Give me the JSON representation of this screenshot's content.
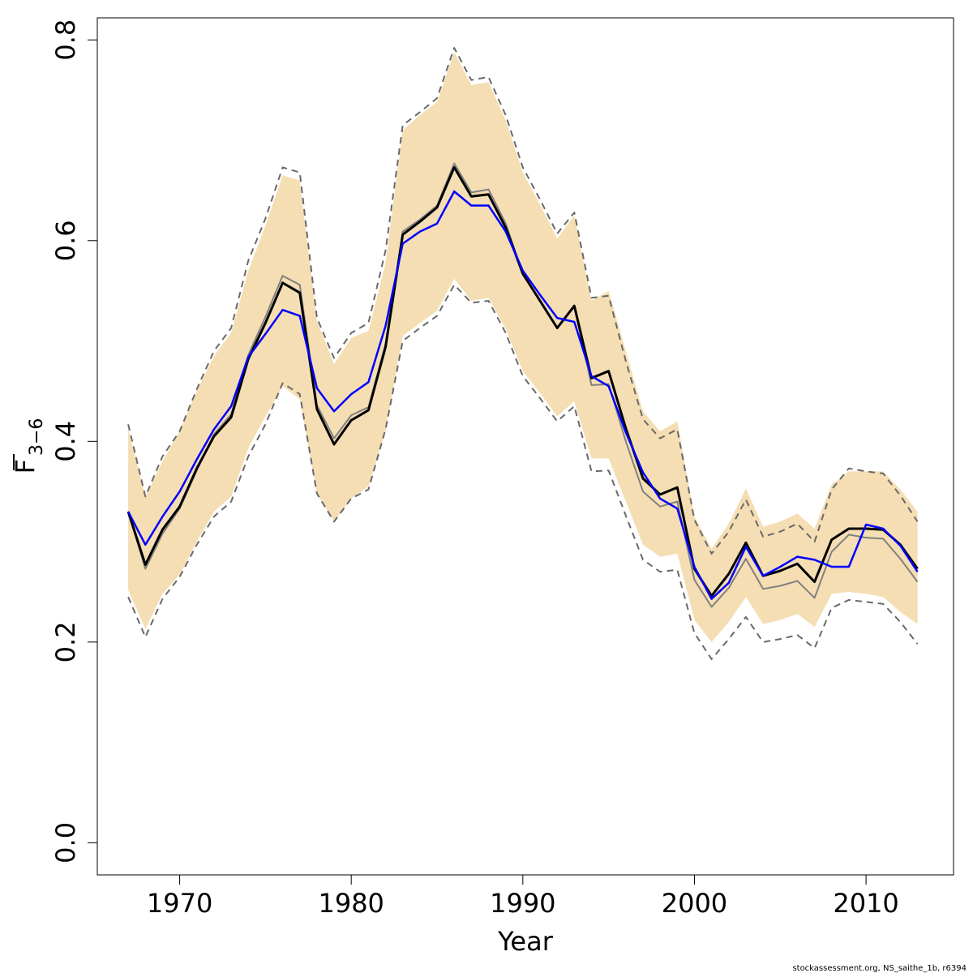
{
  "chart_data": {
    "type": "line",
    "xlabel": "Year",
    "ylabel_main": "F",
    "ylabel_sub": "3−6",
    "xlim": [
      1965.2,
      2015.1
    ],
    "ylim": [
      -0.032,
      0.822
    ],
    "x_ticks": [
      1970,
      1980,
      1990,
      2000,
      2010
    ],
    "x_tick_labels": [
      "1970",
      "1980",
      "1990",
      "2000",
      "2010"
    ],
    "y_ticks": [
      0.0,
      0.2,
      0.4,
      0.6,
      0.8
    ],
    "y_tick_labels": [
      "0.0",
      "0.2",
      "0.4",
      "0.6",
      "0.8"
    ],
    "grid": false,
    "colors": {
      "band": "#f5deb3",
      "main_line": "#000000",
      "blue_line": "#0000ff",
      "grey_line": "#808080",
      "dashed_bounds": "#696969"
    },
    "years": [
      1967,
      1968,
      1969,
      1970,
      1971,
      1972,
      1973,
      1974,
      1975,
      1976,
      1977,
      1978,
      1979,
      1980,
      1981,
      1982,
      1983,
      1984,
      1985,
      1986,
      1987,
      1988,
      1989,
      1990,
      1991,
      1992,
      1993,
      1994,
      1995,
      1996,
      1997,
      1998,
      1999,
      2000,
      2001,
      2002,
      2003,
      2004,
      2005,
      2006,
      2007,
      2008,
      2009,
      2010,
      2011,
      2012,
      2013
    ],
    "band_upper": [
      0.412,
      0.345,
      0.38,
      0.41,
      0.45,
      0.485,
      0.508,
      0.57,
      0.615,
      0.665,
      0.66,
      0.52,
      0.477,
      0.503,
      0.51,
      0.578,
      0.71,
      0.725,
      0.738,
      0.788,
      0.755,
      0.758,
      0.72,
      0.668,
      0.636,
      0.602,
      0.625,
      0.54,
      0.55,
      0.49,
      0.43,
      0.41,
      0.42,
      0.325,
      0.293,
      0.318,
      0.353,
      0.315,
      0.32,
      0.328,
      0.313,
      0.357,
      0.37,
      0.37,
      0.37,
      0.352,
      0.33
    ],
    "band_lower": [
      0.252,
      0.213,
      0.248,
      0.267,
      0.3,
      0.33,
      0.345,
      0.393,
      0.425,
      0.455,
      0.442,
      0.348,
      0.32,
      0.343,
      0.355,
      0.41,
      0.505,
      0.518,
      0.53,
      0.562,
      0.54,
      0.543,
      0.512,
      0.47,
      0.448,
      0.425,
      0.44,
      0.383,
      0.383,
      0.34,
      0.297,
      0.285,
      0.288,
      0.222,
      0.2,
      0.22,
      0.245,
      0.218,
      0.222,
      0.228,
      0.215,
      0.248,
      0.25,
      0.248,
      0.245,
      0.23,
      0.218
    ],
    "series": [
      {
        "name": "",
        "style": "solid",
        "color": "#000000",
        "width": 3,
        "values": [
          0.33,
          0.277,
          0.312,
          0.335,
          0.373,
          0.405,
          0.424,
          0.482,
          0.518,
          0.558,
          0.548,
          0.432,
          0.397,
          0.421,
          0.431,
          0.494,
          0.606,
          0.619,
          0.633,
          0.673,
          0.644,
          0.646,
          0.613,
          0.567,
          0.54,
          0.513,
          0.535,
          0.463,
          0.47,
          0.413,
          0.363,
          0.347,
          0.354,
          0.273,
          0.246,
          0.268,
          0.299,
          0.266,
          0.271,
          0.278,
          0.26,
          0.302,
          0.313,
          0.313,
          0.312,
          0.297,
          0.273
        ]
      },
      {
        "name": "",
        "style": "solid",
        "color": "#808080",
        "width": 2,
        "values": [
          0.33,
          0.273,
          0.308,
          0.333,
          0.371,
          0.407,
          0.427,
          0.486,
          0.524,
          0.565,
          0.556,
          0.436,
          0.403,
          0.426,
          0.434,
          0.497,
          0.609,
          0.621,
          0.635,
          0.677,
          0.648,
          0.651,
          0.617,
          0.567,
          0.54,
          0.513,
          0.534,
          0.456,
          0.457,
          0.4,
          0.35,
          0.335,
          0.34,
          0.262,
          0.235,
          0.254,
          0.283,
          0.253,
          0.256,
          0.261,
          0.244,
          0.29,
          0.307,
          0.304,
          0.303,
          0.283,
          0.26
        ]
      },
      {
        "name": "",
        "style": "solid",
        "color": "#0000ff",
        "width": 2.5,
        "values": [
          0.33,
          0.297,
          0.325,
          0.35,
          0.382,
          0.412,
          0.435,
          0.484,
          0.507,
          0.531,
          0.525,
          0.453,
          0.43,
          0.447,
          0.459,
          0.515,
          0.597,
          0.609,
          0.617,
          0.649,
          0.635,
          0.635,
          0.609,
          0.57,
          0.546,
          0.523,
          0.519,
          0.465,
          0.455,
          0.409,
          0.369,
          0.343,
          0.333,
          0.275,
          0.243,
          0.259,
          0.295,
          0.266,
          0.275,
          0.285,
          0.282,
          0.275,
          0.275,
          0.317,
          0.313,
          0.296,
          0.27
        ]
      },
      {
        "name": "",
        "style": "dashed",
        "color": "#696969",
        "width": 2,
        "values": [
          0.417,
          0.345,
          0.385,
          0.41,
          0.452,
          0.49,
          0.513,
          0.58,
          0.622,
          0.673,
          0.668,
          0.523,
          0.483,
          0.508,
          0.518,
          0.59,
          0.715,
          0.728,
          0.742,
          0.792,
          0.76,
          0.763,
          0.725,
          0.673,
          0.641,
          0.607,
          0.628,
          0.543,
          0.545,
          0.48,
          0.422,
          0.403,
          0.412,
          0.322,
          0.288,
          0.31,
          0.342,
          0.305,
          0.31,
          0.318,
          0.3,
          0.352,
          0.373,
          0.37,
          0.368,
          0.346,
          0.32
        ]
      },
      {
        "name": "",
        "style": "dashed",
        "color": "#696969",
        "width": 2,
        "values": [
          0.245,
          0.205,
          0.243,
          0.265,
          0.297,
          0.325,
          0.34,
          0.385,
          0.417,
          0.458,
          0.447,
          0.348,
          0.32,
          0.343,
          0.352,
          0.412,
          0.5,
          0.513,
          0.525,
          0.556,
          0.538,
          0.54,
          0.508,
          0.465,
          0.443,
          0.42,
          0.435,
          0.37,
          0.371,
          0.326,
          0.282,
          0.27,
          0.272,
          0.209,
          0.183,
          0.203,
          0.225,
          0.2,
          0.203,
          0.207,
          0.194,
          0.234,
          0.242,
          0.24,
          0.238,
          0.22,
          0.198
        ]
      }
    ]
  },
  "footer": {
    "credit": "stockassessment.org, NS_saithe_1b, r6394"
  }
}
